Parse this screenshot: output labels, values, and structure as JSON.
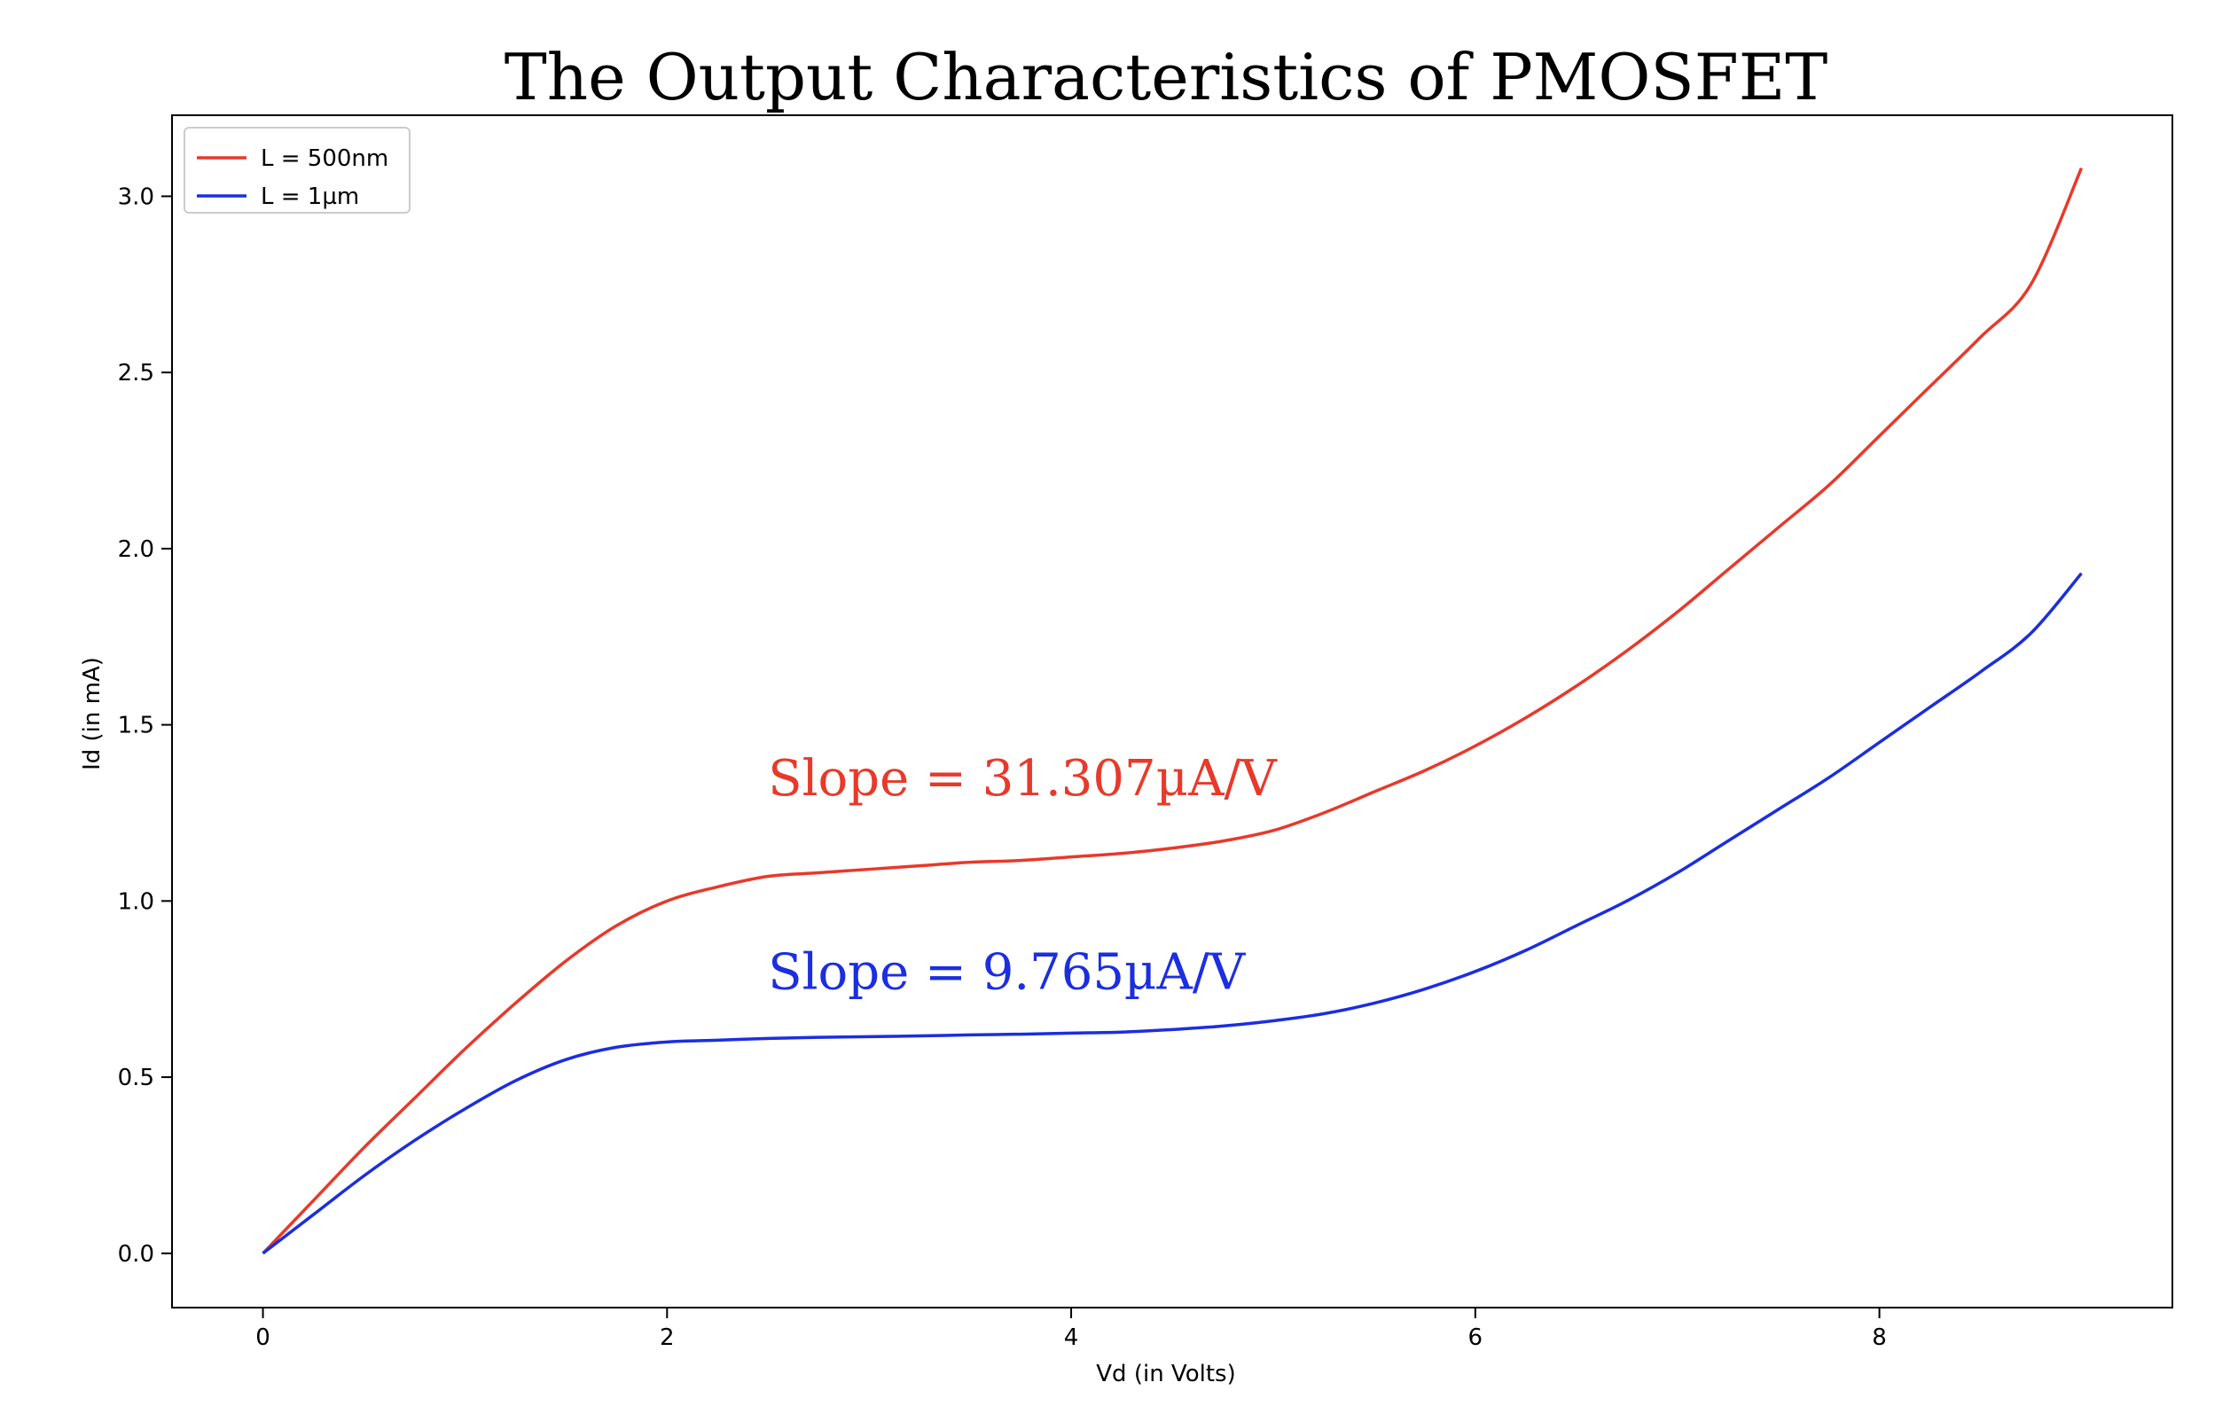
{
  "chart_data": {
    "type": "line",
    "title": "The Output Characteristics of PMOSFET",
    "xlabel": "Vd (in Volts)",
    "ylabel": "Id (in mA)",
    "xlim": [
      -0.45,
      9.45
    ],
    "ylim": [
      -0.154,
      3.23
    ],
    "xticks": [
      0,
      2,
      4,
      6,
      8
    ],
    "xtick_labels": [
      "0",
      "2",
      "4",
      "6",
      "8"
    ],
    "yticks": [
      0.0,
      0.5,
      1.0,
      1.5,
      2.0,
      2.5,
      3.0
    ],
    "ytick_labels": [
      "0.0",
      "0.5",
      "1.0",
      "1.5",
      "2.0",
      "2.5",
      "3.0"
    ],
    "grid": false,
    "legend_position": "top-left",
    "series": [
      {
        "name": "L = 500nm",
        "color": "#e8392a",
        "x": [
          0,
          0.25,
          0.5,
          0.75,
          1.0,
          1.25,
          1.5,
          1.75,
          2.0,
          2.25,
          2.5,
          2.75,
          3.0,
          3.25,
          3.5,
          3.75,
          4.0,
          4.25,
          4.5,
          4.75,
          5.0,
          5.25,
          5.5,
          5.75,
          6.0,
          6.25,
          6.5,
          6.75,
          7.0,
          7.25,
          7.5,
          7.75,
          8.0,
          8.25,
          8.5,
          8.75,
          9.0
        ],
        "y": [
          0.0,
          0.15,
          0.3,
          0.44,
          0.58,
          0.71,
          0.83,
          0.93,
          1.0,
          1.04,
          1.07,
          1.08,
          1.09,
          1.1,
          1.11,
          1.115,
          1.125,
          1.135,
          1.15,
          1.17,
          1.2,
          1.25,
          1.31,
          1.37,
          1.44,
          1.52,
          1.61,
          1.71,
          1.82,
          1.94,
          2.06,
          2.18,
          2.32,
          2.46,
          2.6,
          2.75,
          3.08
        ]
      },
      {
        "name": "L = 1µm",
        "color": "#1b2ee0",
        "x": [
          0,
          0.25,
          0.5,
          0.75,
          1.0,
          1.25,
          1.5,
          1.75,
          2.0,
          2.25,
          2.5,
          2.75,
          3.0,
          3.25,
          3.5,
          3.75,
          4.0,
          4.25,
          4.5,
          4.75,
          5.0,
          5.25,
          5.5,
          5.75,
          6.0,
          6.25,
          6.5,
          6.75,
          7.0,
          7.25,
          7.5,
          7.75,
          8.0,
          8.25,
          8.5,
          8.75,
          9.0
        ],
        "y": [
          0.0,
          0.11,
          0.22,
          0.32,
          0.41,
          0.49,
          0.55,
          0.585,
          0.6,
          0.605,
          0.61,
          0.613,
          0.615,
          0.617,
          0.62,
          0.622,
          0.625,
          0.628,
          0.635,
          0.645,
          0.66,
          0.68,
          0.71,
          0.75,
          0.8,
          0.86,
          0.93,
          1.0,
          1.08,
          1.17,
          1.26,
          1.35,
          1.45,
          1.55,
          1.65,
          1.76,
          1.93
        ]
      }
    ],
    "annotations": [
      {
        "text": "Slope = 31.307µA/V",
        "x": 2.5,
        "y": 1.3,
        "color": "#e8392a"
      },
      {
        "text": "Slope = 9.765µA/V",
        "x": 2.5,
        "y": 0.75,
        "color": "#1b2ee0"
      }
    ]
  }
}
